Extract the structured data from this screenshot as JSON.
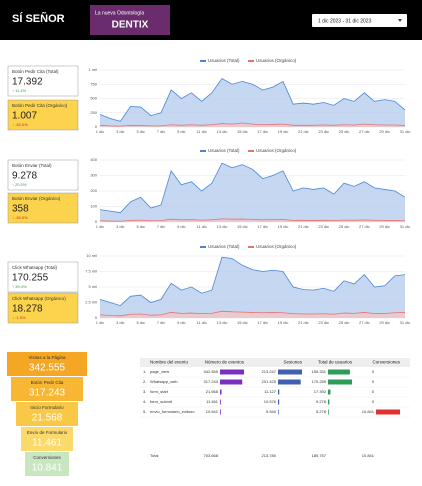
{
  "header": {
    "logo": "SÍ SEÑOR",
    "brand_tagline": "La nueva Odontología",
    "brand": "DENTIX",
    "date_range": "1 dic 2023 - 31 dic 2023"
  },
  "kpis": [
    {
      "label": "Botón Pedir Cita (Total)",
      "value": "17.392",
      "delta": "↑ 11.4%",
      "kind": "total",
      "delta_color": "#2e9b46"
    },
    {
      "label": "Botón Pedir Cita (Orgánico)",
      "value": "1.007",
      "delta": "↓ -60.5%",
      "kind": "organic",
      "delta_color": "#d32f2f"
    },
    {
      "label": "Botón Enviar (Total)",
      "value": "9.278",
      "delta": "↑ 20.0%",
      "kind": "total",
      "delta_color": "#2e9b46"
    },
    {
      "label": "Botón Enviar (Orgánico)",
      "value": "358",
      "delta": "↓ -60.5%",
      "kind": "organic",
      "delta_color": "#d32f2f"
    },
    {
      "label": "Click Whatsapp (Total)",
      "value": "170.255",
      "delta": "↑ 39.4%",
      "kind": "total",
      "delta_color": "#2e9b46"
    },
    {
      "label": "Click Whatsapp (Orgánico)",
      "value": "18.278",
      "delta": "↓ -1.5%",
      "kind": "organic",
      "delta_color": "#d32f2f"
    }
  ],
  "chart_data": [
    {
      "type": "area",
      "categories": [
        "1 dic",
        null,
        "3 dic",
        null,
        "5 dic",
        null,
        "7 dic",
        null,
        "9 dic",
        null,
        "11 dic",
        null,
        "13 dic",
        null,
        "15 dic",
        null,
        "17 dic",
        null,
        "19 dic",
        null,
        "21 dic",
        null,
        "23 dic",
        null,
        "25 dic",
        null,
        "27 dic",
        null,
        "29 dic",
        null,
        "31 dic"
      ],
      "series": [
        {
          "name": "Usuarios (Total)",
          "color": "#4a86d4",
          "fill": "#b8cdee",
          "values": [
            220,
            150,
            100,
            360,
            350,
            200,
            250,
            650,
            500,
            600,
            450,
            600,
            850,
            750,
            800,
            750,
            650,
            700,
            800,
            400,
            420,
            400,
            430,
            380,
            500,
            450,
            600,
            450,
            480,
            450,
            300
          ]
        },
        {
          "name": "Usuarios (Orgánico)",
          "color": "#e57373",
          "fill": "#f4c7c7",
          "values": [
            30,
            20,
            15,
            30,
            25,
            20,
            20,
            40,
            30,
            40,
            30,
            40,
            60,
            50,
            70,
            50,
            40,
            45,
            50,
            30,
            30,
            30,
            35,
            30,
            40,
            35,
            50,
            40,
            35,
            35,
            25
          ]
        }
      ],
      "ylim": [
        0,
        1000
      ],
      "yticks": [
        0,
        250,
        500,
        750,
        {
          "value": 1000,
          "label": "1 mil"
        }
      ],
      "grid": true
    },
    {
      "type": "area",
      "categories": [
        "1 dic",
        null,
        "3 dic",
        null,
        "5 dic",
        null,
        "7 dic",
        null,
        "9 dic",
        null,
        "11 dic",
        null,
        "13 dic",
        null,
        "15 dic",
        null,
        "17 dic",
        null,
        "19 dic",
        null,
        "21 dic",
        null,
        "23 dic",
        null,
        "25 dic",
        null,
        "27 dic",
        null,
        "29 dic",
        null,
        "31 dic"
      ],
      "series": [
        {
          "name": "Usuarios (Total)",
          "color": "#4a86d4",
          "fill": "#b8cdee",
          "values": [
            80,
            70,
            60,
            130,
            160,
            90,
            110,
            330,
            240,
            260,
            200,
            250,
            380,
            350,
            370,
            340,
            280,
            300,
            330,
            200,
            220,
            210,
            220,
            180,
            250,
            230,
            260,
            220,
            210,
            200,
            160
          ]
        },
        {
          "name": "Usuarios (Orgánico)",
          "color": "#e57373",
          "fill": "#f4c7c7",
          "values": [
            8,
            6,
            5,
            10,
            12,
            8,
            9,
            18,
            14,
            15,
            12,
            14,
            20,
            18,
            19,
            17,
            14,
            15,
            16,
            10,
            11,
            10,
            11,
            9,
            12,
            11,
            13,
            11,
            10,
            10,
            8
          ]
        }
      ],
      "ylim": [
        0,
        400
      ],
      "yticks": [
        0,
        100,
        200,
        300,
        400
      ],
      "grid": true
    },
    {
      "type": "area",
      "categories": [
        "1 dic",
        null,
        "3 dic",
        null,
        "5 dic",
        null,
        "7 dic",
        null,
        "9 dic",
        null,
        "11 dic",
        null,
        "13 dic",
        null,
        "15 dic",
        null,
        "17 dic",
        null,
        "19 dic",
        null,
        "21 dic",
        null,
        "23 dic",
        null,
        "25 dic",
        null,
        "27 dic",
        null,
        "29 dic",
        null,
        "31 dic"
      ],
      "series": [
        {
          "name": "Usuarios (Total)",
          "color": "#4a86d4",
          "fill": "#b8cdee",
          "values": [
            3000,
            2500,
            2000,
            3500,
            3700,
            2500,
            3000,
            5600,
            4500,
            5000,
            4000,
            4500,
            9800,
            9600,
            8500,
            7800,
            7500,
            7700,
            7500,
            5000,
            4600,
            4500,
            4800,
            4300,
            6000,
            5500,
            7000,
            5000,
            5200,
            6800,
            7000
          ]
        },
        {
          "name": "Usuarios (Orgánico)",
          "color": "#e57373",
          "fill": "#f4c7c7",
          "values": [
            500,
            400,
            350,
            600,
            650,
            450,
            500,
            900,
            750,
            800,
            700,
            750,
            1100,
            1000,
            950,
            900,
            850,
            880,
            850,
            700,
            650,
            640,
            680,
            600,
            800,
            750,
            900,
            700,
            720,
            850,
            900
          ]
        }
      ],
      "ylim": [
        0,
        10000
      ],
      "yticks": [
        0,
        {
          "value": 2500,
          "label": "2.5 mil"
        },
        {
          "value": 5000,
          "label": "5 mil"
        },
        {
          "value": 7500,
          "label": "7.5 mil"
        },
        {
          "value": 10000,
          "label": "10 mil"
        }
      ],
      "grid": true
    }
  ],
  "funnel": [
    {
      "label": "Visitas a la Página",
      "value": "342.555",
      "color": "#f5a623"
    },
    {
      "label": "Botón Pedir Cita",
      "value": "317.243",
      "color": "#f7b733"
    },
    {
      "label": "Inicio Formulario",
      "value": "21.568",
      "color": "#f9c846"
    },
    {
      "label": "Envío de Formulario",
      "value": "11.461",
      "color": "#fbd96a"
    },
    {
      "label": "Conversiones",
      "value": "10.841",
      "color": "#c8e6c0"
    }
  ],
  "table": {
    "name_header": "Nombre del evento",
    "row_numbers": [
      "1.",
      "2.",
      "3.",
      "4.",
      "5."
    ],
    "names": [
      "page_view",
      "Whatsapp_web",
      "form_start",
      "form_submit",
      "envio_formulario_exitoso"
    ],
    "columns": [
      {
        "name": "Número de eventos",
        "color": "#7b2fbf",
        "max": 342555,
        "values": [
          342555,
          317243,
          21568,
          11461,
          10841
        ],
        "value_labels": [
          "342.555",
          "317.243",
          "21.568",
          "11.461",
          "10.841"
        ]
      },
      {
        "name": "Sesiones",
        "color": "#3f5fb0",
        "max": 213247,
        "values": [
          213247,
          201425,
          11127,
          10576,
          5540
        ],
        "value_labels": [
          "213.247",
          "201.425",
          "11.127",
          "10.576",
          "5.540"
        ]
      },
      {
        "name": "Total de usuarios",
        "color": "#2e9b58",
        "max": 170255,
        "values": [
          155331,
          170255,
          17392,
          9278,
          5278
        ],
        "value_labels": [
          "155.331",
          "170.255",
          "17.392",
          "9.278",
          "5.278"
        ]
      },
      {
        "name": "Conversiones",
        "color": "#e03131",
        "max": 10841,
        "values": [
          0,
          0,
          0,
          0,
          10841
        ],
        "value_labels": [
          "0",
          "0",
          "0",
          "0",
          "10.841"
        ]
      }
    ],
    "total_label": "Total",
    "totals": [
      "703.668",
      "213.780",
      "185.757",
      "10.841"
    ]
  }
}
